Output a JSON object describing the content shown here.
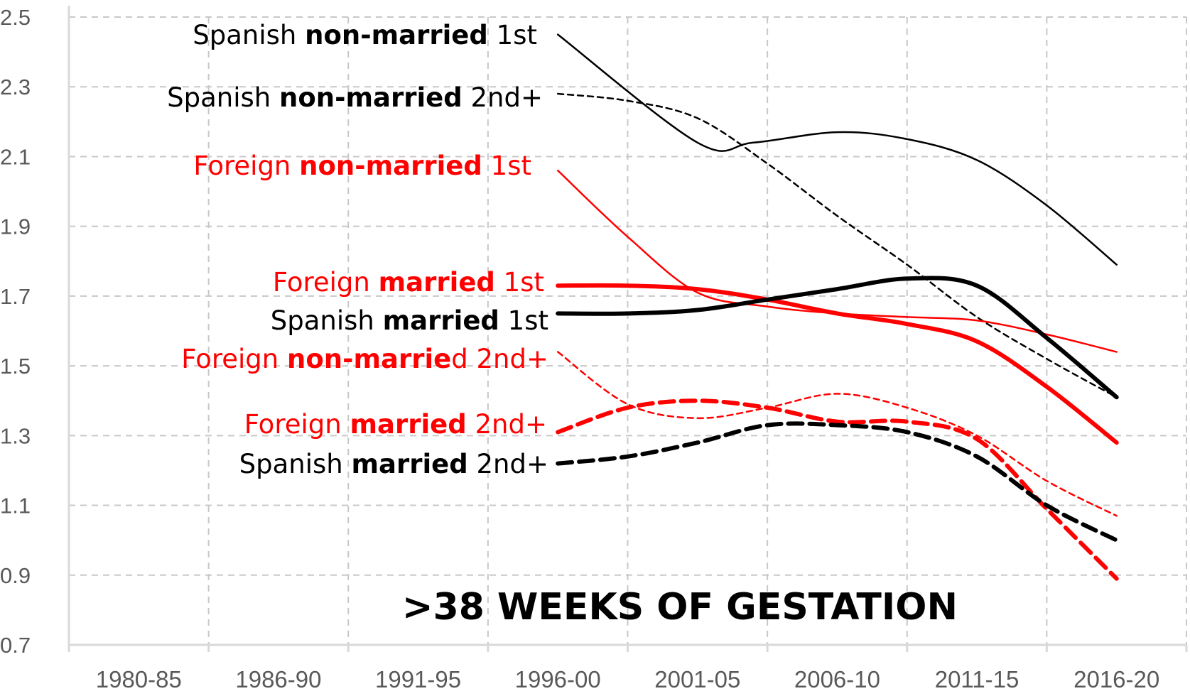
{
  "chart_data": {
    "type": "line",
    "title": ">38 WEEKS OF GESTATION",
    "xlabel": "",
    "ylabel": "",
    "categories": [
      "1980-85",
      "1986-90",
      "1991-95",
      "1996-00",
      "2001-05",
      "2006-10",
      "2011-15",
      "2016-20"
    ],
    "y_ticks": [
      "0.7",
      "0.9",
      "1.1",
      "1.3",
      "1.5",
      "1.7",
      "1.9",
      "2.1",
      "2.3",
      "2.5"
    ],
    "ylim": [
      0.7,
      2.5
    ],
    "grid": {
      "vertical": true,
      "horizontal": true,
      "style": "dashed"
    },
    "legend": "inline labels on left",
    "series": [
      {
        "id": "es-nm-1",
        "label_parts": [
          {
            "t": "Spanish ",
            "b": false
          },
          {
            "t": "non-married",
            "b": true
          },
          {
            "t": " 1st",
            "b": false
          }
        ],
        "color": "#000000",
        "width": "thin",
        "dash": "solid",
        "points": [
          [
            3,
            2.45
          ],
          [
            4,
            2.14
          ],
          [
            4.4,
            2.14
          ],
          [
            5,
            2.17
          ],
          [
            5.5,
            2.15
          ],
          [
            6,
            2.09
          ],
          [
            6.5,
            1.96
          ],
          [
            7,
            1.79
          ]
        ]
      },
      {
        "id": "es-nm-2",
        "label_parts": [
          {
            "t": "Spanish ",
            "b": false
          },
          {
            "t": "non-married",
            "b": true
          },
          {
            "t": " 2nd+",
            "b": false
          }
        ],
        "color": "#000000",
        "width": "thin",
        "dash": "dashed",
        "points": [
          [
            3,
            2.28
          ],
          [
            3.5,
            2.26
          ],
          [
            4,
            2.21
          ],
          [
            4.5,
            2.08
          ],
          [
            5,
            1.93
          ],
          [
            5.5,
            1.79
          ],
          [
            6,
            1.64
          ],
          [
            6.5,
            1.52
          ],
          [
            7,
            1.41
          ]
        ]
      },
      {
        "id": "fr-nm-1",
        "label_parts": [
          {
            "t": "Foreign ",
            "b": false
          },
          {
            "t": "non-married",
            "b": true
          },
          {
            "t": " 1st",
            "b": false
          }
        ],
        "color": "#ff0000",
        "width": "thin",
        "dash": "solid",
        "points": [
          [
            3,
            2.06
          ],
          [
            3.5,
            1.87
          ],
          [
            4,
            1.71
          ],
          [
            4.5,
            1.67
          ],
          [
            5,
            1.65
          ],
          [
            5.5,
            1.64
          ],
          [
            6,
            1.63
          ],
          [
            6.5,
            1.59
          ],
          [
            7,
            1.54
          ]
        ]
      },
      {
        "id": "fr-m-1",
        "label_parts": [
          {
            "t": "Foreign ",
            "b": false
          },
          {
            "t": "married",
            "b": true
          },
          {
            "t": " 1st",
            "b": false
          }
        ],
        "color": "#ff0000",
        "width": "thick",
        "dash": "solid",
        "points": [
          [
            3,
            1.73
          ],
          [
            3.5,
            1.73
          ],
          [
            4,
            1.72
          ],
          [
            4.5,
            1.69
          ],
          [
            5,
            1.65
          ],
          [
            5.5,
            1.62
          ],
          [
            6,
            1.57
          ],
          [
            6.5,
            1.44
          ],
          [
            7,
            1.28
          ]
        ]
      },
      {
        "id": "es-m-1",
        "label_parts": [
          {
            "t": "Spanish ",
            "b": false
          },
          {
            "t": "married",
            "b": true
          },
          {
            "t": " 1st",
            "b": false
          }
        ],
        "color": "#000000",
        "width": "thick",
        "dash": "solid",
        "points": [
          [
            3,
            1.65
          ],
          [
            3.5,
            1.65
          ],
          [
            4,
            1.66
          ],
          [
            4.5,
            1.69
          ],
          [
            5,
            1.72
          ],
          [
            5.5,
            1.75
          ],
          [
            6,
            1.73
          ],
          [
            6.5,
            1.58
          ],
          [
            7,
            1.41
          ]
        ]
      },
      {
        "id": "fr-nm-2",
        "label_parts": [
          {
            "t": "Foreign ",
            "b": false
          },
          {
            "t": "non-marrie",
            "b": true
          },
          {
            "t": "d 2nd+",
            "b": false
          }
        ],
        "color": "#ff0000",
        "width": "thin",
        "dash": "dashed",
        "points": [
          [
            3,
            1.54
          ],
          [
            3.5,
            1.39
          ],
          [
            4,
            1.35
          ],
          [
            4.5,
            1.38
          ],
          [
            5,
            1.42
          ],
          [
            5.5,
            1.38
          ],
          [
            6,
            1.3
          ],
          [
            6.5,
            1.17
          ],
          [
            7,
            1.07
          ]
        ]
      },
      {
        "id": "fr-m-2",
        "label_parts": [
          {
            "t": "Foreign ",
            "b": false
          },
          {
            "t": "married",
            "b": true
          },
          {
            "t": " 2nd+",
            "b": false
          }
        ],
        "color": "#ff0000",
        "width": "thick",
        "dash": "dashed",
        "points": [
          [
            3,
            1.31
          ],
          [
            3.5,
            1.38
          ],
          [
            4,
            1.4
          ],
          [
            4.5,
            1.38
          ],
          [
            5,
            1.34
          ],
          [
            5.5,
            1.34
          ],
          [
            6,
            1.29
          ],
          [
            6.5,
            1.09
          ],
          [
            7,
            0.89
          ]
        ]
      },
      {
        "id": "es-m-2",
        "label_parts": [
          {
            "t": "Spanish ",
            "b": false
          },
          {
            "t": "married",
            "b": true
          },
          {
            "t": " 2nd+",
            "b": false
          }
        ],
        "color": "#000000",
        "width": "thick",
        "dash": "dashed",
        "points": [
          [
            3,
            1.22
          ],
          [
            3.5,
            1.24
          ],
          [
            4,
            1.28
          ],
          [
            4.5,
            1.33
          ],
          [
            5,
            1.33
          ],
          [
            5.5,
            1.31
          ],
          [
            6,
            1.24
          ],
          [
            6.5,
            1.1
          ],
          [
            7,
            1.0
          ]
        ]
      }
    ]
  }
}
